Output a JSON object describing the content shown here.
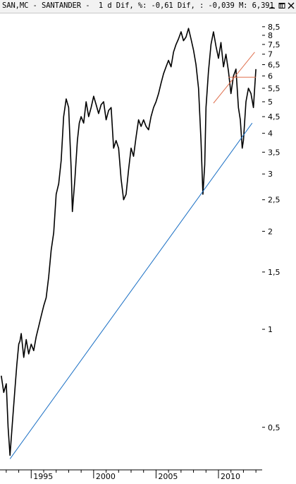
{
  "header": {
    "text": "SAN,MC - SANTANDER -  1 d Dif, %: -0,61 Dif, : -0,039 M: 6,391 m"
  },
  "chart_data": {
    "type": "line",
    "ylog": true,
    "ylim": [
      0.37,
      9.2
    ],
    "xlim": [
      1992.5,
      2013.5
    ],
    "y_ticks": [
      0.5,
      1,
      1.5,
      2,
      2.5,
      3,
      3.5,
      4,
      4.5,
      5,
      5.5,
      6,
      6.5,
      7,
      7.5,
      8,
      8.5
    ],
    "y_tick_labels": [
      "0,5",
      "1",
      "1,5",
      "2",
      "2,5",
      "3",
      "3,5",
      "4",
      "4,5",
      "5",
      "5,5",
      "6",
      "6,5",
      "7",
      "7,5",
      "8",
      "8,5"
    ],
    "x_ticks": [
      1995,
      2000,
      2005,
      2010
    ],
    "x_tick_labels": [
      "1995",
      "2000",
      "2005",
      "2010"
    ],
    "series": [
      {
        "color": "#000000",
        "x": [
          1992.6,
          1992.8,
          1993.0,
          1993.15,
          1993.3,
          1993.5,
          1993.7,
          1993.85,
          1994.0,
          1994.1,
          1994.2,
          1994.4,
          1994.6,
          1994.8,
          1995.0,
          1995.2,
          1995.4,
          1995.6,
          1995.8,
          1996.0,
          1996.2,
          1996.4,
          1996.6,
          1996.8,
          1997.0,
          1997.2,
          1997.4,
          1997.6,
          1997.8,
          1998.0,
          1998.2,
          1998.3,
          1998.5,
          1998.7,
          1998.85,
          1999.0,
          1999.2,
          1999.4,
          1999.6,
          1999.8,
          2000.0,
          2000.2,
          2000.4,
          2000.6,
          2000.8,
          2001.0,
          2001.2,
          2001.4,
          2001.6,
          2001.8,
          2002.0,
          2002.2,
          2002.4,
          2002.6,
          2002.8,
          2003.0,
          2003.2,
          2003.4,
          2003.6,
          2003.8,
          2004.0,
          2004.2,
          2004.4,
          2004.6,
          2004.8,
          2005.0,
          2005.2,
          2005.4,
          2005.6,
          2005.8,
          2006.0,
          2006.2,
          2006.4,
          2006.6,
          2006.8,
          2007.0,
          2007.2,
          2007.4,
          2007.6,
          2007.8,
          2008.0,
          2008.2,
          2008.4,
          2008.6,
          2008.75,
          2008.9,
          2009.0,
          2009.2,
          2009.4,
          2009.6,
          2009.8,
          2010.0,
          2010.2,
          2010.4,
          2010.6,
          2010.8,
          2011.0,
          2011.2,
          2011.4,
          2011.6,
          2011.75,
          2011.9,
          2012.0,
          2012.2,
          2012.4,
          2012.6,
          2012.8,
          2013.0
        ],
        "values": [
          0.72,
          0.64,
          0.68,
          0.5,
          0.41,
          0.52,
          0.66,
          0.78,
          0.9,
          0.92,
          0.97,
          0.82,
          0.93,
          0.84,
          0.9,
          0.86,
          0.95,
          1.02,
          1.1,
          1.18,
          1.25,
          1.45,
          1.75,
          1.98,
          2.6,
          2.8,
          3.3,
          4.5,
          5.1,
          4.8,
          3.1,
          2.3,
          2.9,
          3.8,
          4.3,
          4.5,
          4.3,
          5.0,
          4.5,
          4.8,
          5.2,
          4.9,
          4.6,
          4.9,
          5.0,
          4.4,
          4.7,
          4.8,
          3.6,
          3.8,
          3.6,
          2.9,
          2.5,
          2.6,
          3.1,
          3.6,
          3.4,
          3.9,
          4.4,
          4.2,
          4.4,
          4.2,
          4.1,
          4.5,
          4.8,
          5.0,
          5.3,
          5.7,
          6.1,
          6.4,
          6.7,
          6.4,
          7.1,
          7.5,
          7.8,
          8.2,
          7.7,
          7.9,
          8.4,
          7.8,
          7.2,
          6.5,
          5.5,
          3.8,
          2.6,
          3.2,
          4.8,
          6.2,
          7.5,
          8.2,
          7.4,
          6.8,
          7.6,
          6.4,
          7.0,
          6.2,
          5.3,
          6.0,
          6.3,
          4.8,
          4.4,
          3.6,
          3.8,
          5.0,
          5.5,
          5.3,
          4.8,
          6.3
        ]
      },
      {
        "color": "#1a6fc4",
        "x": [
          1993.3,
          2012.7
        ],
        "values": [
          0.4,
          4.3
        ]
      },
      {
        "color": "#e0704e",
        "x": [
          2009.6,
          2012.9
        ],
        "values": [
          4.95,
          7.1
        ]
      },
      {
        "color": "#e0704e",
        "x": [
          2010.8,
          2013.0
        ],
        "values": [
          5.95,
          5.95
        ]
      }
    ]
  }
}
